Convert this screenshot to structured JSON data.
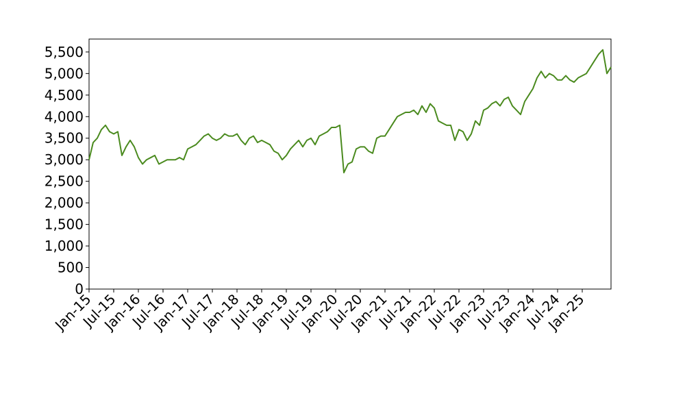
{
  "chart_data": {
    "type": "line",
    "x": [
      "2015-01",
      "2015-02",
      "2015-03",
      "2015-04",
      "2015-05",
      "2015-06",
      "2015-07",
      "2015-08",
      "2015-09",
      "2015-10",
      "2015-11",
      "2015-12",
      "2016-01",
      "2016-02",
      "2016-03",
      "2016-04",
      "2016-05",
      "2016-06",
      "2016-07",
      "2016-08",
      "2016-09",
      "2016-10",
      "2016-11",
      "2016-12",
      "2017-01",
      "2017-02",
      "2017-03",
      "2017-04",
      "2017-05",
      "2017-06",
      "2017-07",
      "2017-08",
      "2017-09",
      "2017-10",
      "2017-11",
      "2017-12",
      "2018-01",
      "2018-02",
      "2018-03",
      "2018-04",
      "2018-05",
      "2018-06",
      "2018-07",
      "2018-08",
      "2018-09",
      "2018-10",
      "2018-11",
      "2018-12",
      "2019-01",
      "2019-02",
      "2019-03",
      "2019-04",
      "2019-05",
      "2019-06",
      "2019-07",
      "2019-08",
      "2019-09",
      "2019-10",
      "2019-11",
      "2019-12",
      "2020-01",
      "2020-02",
      "2020-03",
      "2020-04",
      "2020-05",
      "2020-06",
      "2020-07",
      "2020-08",
      "2020-09",
      "2020-10",
      "2020-11",
      "2020-12",
      "2021-01",
      "2021-02",
      "2021-03",
      "2021-04",
      "2021-05",
      "2021-06",
      "2021-07",
      "2021-08",
      "2021-09",
      "2021-10",
      "2021-11",
      "2021-12",
      "2022-01",
      "2022-02",
      "2022-03",
      "2022-04",
      "2022-05",
      "2022-06",
      "2022-07",
      "2022-08",
      "2022-09",
      "2022-10",
      "2022-11",
      "2022-12",
      "2023-01",
      "2023-02",
      "2023-03",
      "2023-04",
      "2023-05",
      "2023-06",
      "2023-07",
      "2023-08",
      "2023-09",
      "2023-10",
      "2023-11",
      "2023-12",
      "2024-01",
      "2024-02",
      "2024-03",
      "2024-04",
      "2024-05",
      "2024-06",
      "2024-07",
      "2024-08",
      "2024-09",
      "2024-10",
      "2024-11",
      "2024-12",
      "2025-01",
      "2025-02",
      "2025-03",
      "2025-04",
      "2025-05",
      "2025-06",
      "2025-07",
      "2025-08"
    ],
    "series": [
      {
        "color": "#4a8a1e",
        "values": [
          3000,
          3400,
          3500,
          3700,
          3800,
          3650,
          3600,
          3650,
          3100,
          3300,
          3450,
          3300,
          3050,
          2900,
          3000,
          3050,
          3100,
          2900,
          2950,
          3000,
          3000,
          3000,
          3050,
          3000,
          3250,
          3300,
          3350,
          3450,
          3550,
          3600,
          3500,
          3450,
          3500,
          3600,
          3550,
          3550,
          3600,
          3450,
          3350,
          3500,
          3550,
          3400,
          3450,
          3400,
          3350,
          3200,
          3150,
          3000,
          3100,
          3250,
          3350,
          3450,
          3300,
          3450,
          3500,
          3350,
          3550,
          3600,
          3650,
          3750,
          3750,
          3800,
          2700,
          2900,
          2950,
          3250,
          3300,
          3300,
          3200,
          3150,
          3500,
          3550,
          3550,
          3700,
          3850,
          4000,
          4050,
          4100,
          4100,
          4150,
          4050,
          4250,
          4100,
          4300,
          4200,
          3900,
          3850,
          3800,
          3800,
          3450,
          3700,
          3650,
          3450,
          3600,
          3900,
          3800,
          4150,
          4200,
          4300,
          4350,
          4250,
          4400,
          4450,
          4250,
          4150,
          4050,
          4350,
          4500,
          4650,
          4900,
          5050,
          4900,
          5000,
          4950,
          4850,
          4850,
          4950,
          4850,
          4800,
          4900,
          4950,
          5000,
          5150,
          5300,
          5450,
          5550,
          5000,
          5150
        ]
      }
    ],
    "xlim": [
      "2015-01",
      "2025-08"
    ],
    "xticks": [
      {
        "value": "2015-01",
        "label": "Jan-15"
      },
      {
        "value": "2015-07",
        "label": "Jul-15"
      },
      {
        "value": "2016-01",
        "label": "Jan-16"
      },
      {
        "value": "2016-07",
        "label": "Jul-16"
      },
      {
        "value": "2017-01",
        "label": "Jan-17"
      },
      {
        "value": "2017-07",
        "label": "Jul-17"
      },
      {
        "value": "2018-01",
        "label": "Jan-18"
      },
      {
        "value": "2018-07",
        "label": "Jul-18"
      },
      {
        "value": "2019-01",
        "label": "Jan-19"
      },
      {
        "value": "2019-07",
        "label": "Jul-19"
      },
      {
        "value": "2020-01",
        "label": "Jan-20"
      },
      {
        "value": "2020-07",
        "label": "Jul-20"
      },
      {
        "value": "2021-01",
        "label": "Jan-21"
      },
      {
        "value": "2021-07",
        "label": "Jul-21"
      },
      {
        "value": "2022-01",
        "label": "Jan-22"
      },
      {
        "value": "2022-07",
        "label": "Jul-22"
      },
      {
        "value": "2023-01",
        "label": "Jan-23"
      },
      {
        "value": "2023-07",
        "label": "Jul-23"
      },
      {
        "value": "2024-01",
        "label": "Jan-24"
      },
      {
        "value": "2024-07",
        "label": "Jul-24"
      },
      {
        "value": "2025-01",
        "label": "Jan-25"
      }
    ],
    "ylim": [
      0,
      5800
    ],
    "yticks": [
      0,
      500,
      {
        "value": 1000,
        "label": "1,000"
      },
      {
        "value": 1500,
        "label": "1,500"
      },
      {
        "value": 2000,
        "label": "2,000"
      },
      {
        "value": 2500,
        "label": "2,500"
      },
      {
        "value": 3000,
        "label": "3,000"
      },
      {
        "value": 3500,
        "label": "3,500"
      },
      {
        "value": 4000,
        "label": "4,000"
      },
      {
        "value": 4500,
        "label": "4,500"
      },
      {
        "value": 5000,
        "label": "5,000"
      },
      {
        "value": 5500,
        "label": "5,500"
      }
    ],
    "grid": false
  }
}
